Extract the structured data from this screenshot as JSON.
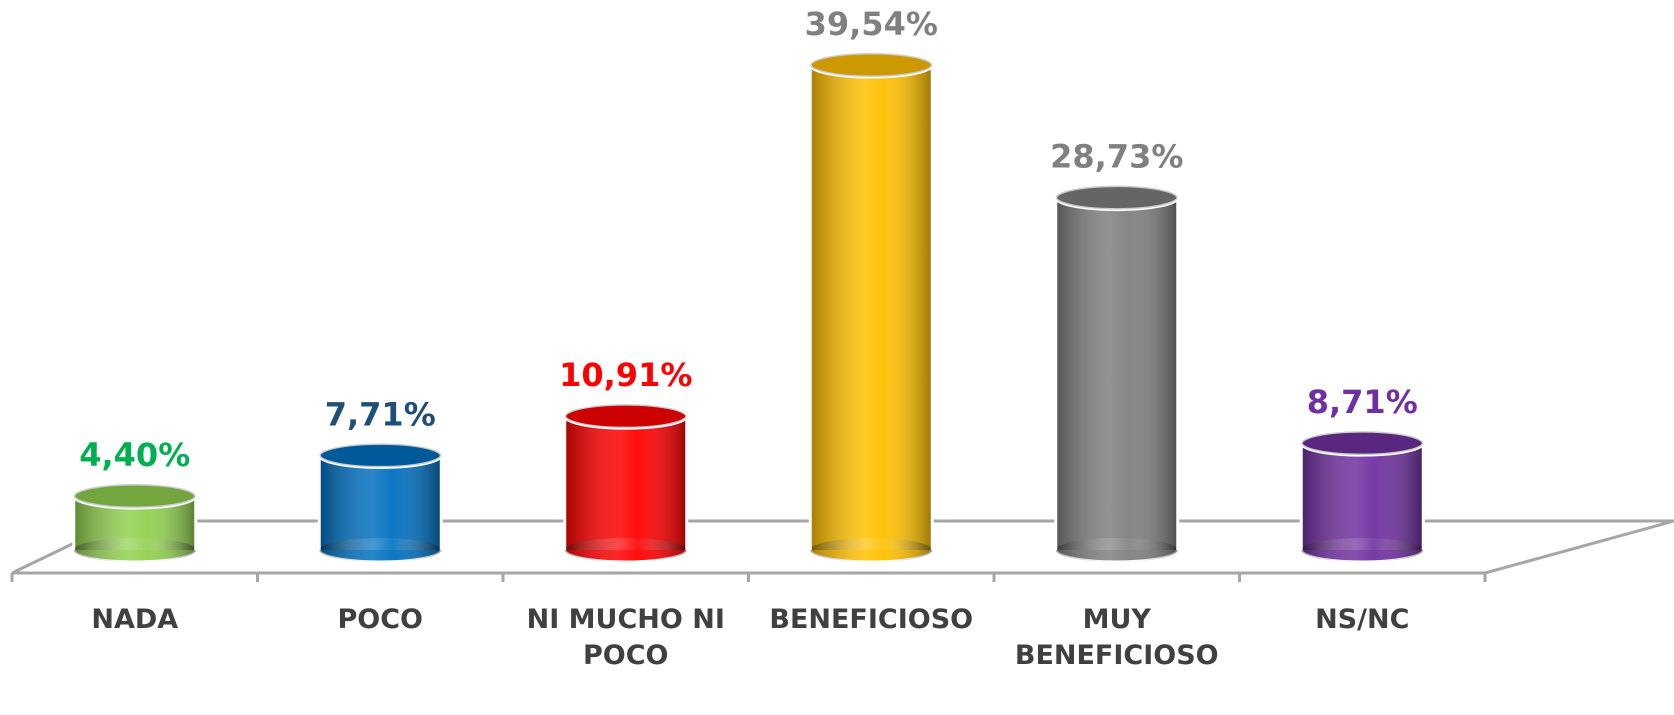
{
  "chart_data": {
    "type": "bar3d",
    "categories": [
      "NADA",
      "POCO",
      "NI MUCHO NI POCO",
      "BENEFICIOSO",
      "MUY BENEFICIOSO",
      "NS/NC"
    ],
    "values": [
      4.4,
      7.71,
      10.91,
      39.54,
      28.73,
      8.71
    ],
    "value_labels": [
      "4,40%",
      "7,71%",
      "10,91%",
      "39,54%",
      "28,73%",
      "8,71%"
    ],
    "colors": [
      "#92d050",
      "#0070c0",
      "#ff0000",
      "#ffc000",
      "#7f7f7f",
      "#7030a0"
    ],
    "value_label_colors": [
      "#00b050",
      "#1f4e79",
      "#ff0000",
      "#808080",
      "#808080",
      "#7030a0"
    ]
  }
}
